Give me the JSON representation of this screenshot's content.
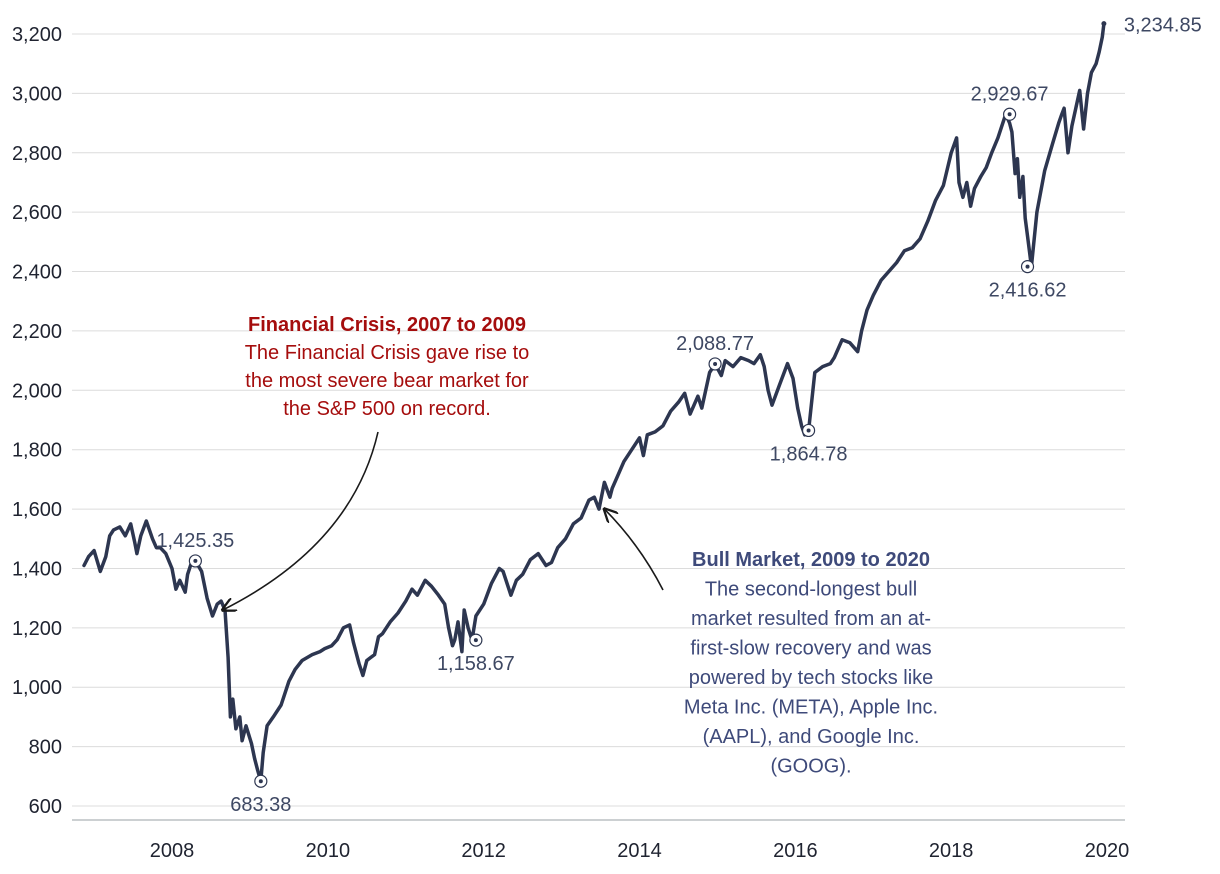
{
  "colors": {
    "line": "#2d3650",
    "grid": "#dcdcdc",
    "crisis": "#a50d0d",
    "bull": "#3e4a7a",
    "label": "#3e4863"
  },
  "chart_data": {
    "type": "line",
    "title": "",
    "xlabel": "",
    "ylabel": "",
    "xlim": [
      2006.87,
      2019.96
    ],
    "ylim": [
      600,
      3250
    ],
    "y_ticks": [
      600,
      800,
      1000,
      1200,
      1400,
      1600,
      1800,
      2000,
      2200,
      2400,
      2600,
      2800,
      3000,
      3200
    ],
    "y_tick_labels": [
      "600",
      "800",
      "1,000",
      "1,200",
      "1,400",
      "1,600",
      "1,800",
      "2,000",
      "2,200",
      "2,400",
      "2,600",
      "2,800",
      "3,000",
      "3,200"
    ],
    "x_ticks": [
      2008,
      2010,
      2012,
      2014,
      2016,
      2018,
      2020
    ],
    "x_tick_labels": [
      "2008",
      "2010",
      "2012",
      "2014",
      "2016",
      "2018",
      "2020"
    ],
    "grid": "horizontal",
    "series": [
      {
        "name": "S&P 500",
        "x": [
          2006.87,
          2006.93,
          2007.0,
          2007.08,
          2007.15,
          2007.2,
          2007.25,
          2007.33,
          2007.4,
          2007.47,
          2007.52,
          2007.55,
          2007.6,
          2007.67,
          2007.75,
          2007.8,
          2007.85,
          2007.92,
          2008.0,
          2008.05,
          2008.1,
          2008.17,
          2008.2,
          2008.25,
          2008.3,
          2008.38,
          2008.45,
          2008.52,
          2008.58,
          2008.63,
          2008.68,
          2008.72,
          2008.75,
          2008.78,
          2008.82,
          2008.87,
          2008.9,
          2008.95,
          2009.02,
          2009.06,
          2009.1,
          2009.14,
          2009.17,
          2009.22,
          2009.3,
          2009.4,
          2009.5,
          2009.58,
          2009.67,
          2009.8,
          2009.9,
          2009.96,
          2010.05,
          2010.12,
          2010.2,
          2010.28,
          2010.33,
          2010.4,
          2010.45,
          2010.5,
          2010.55,
          2010.6,
          2010.65,
          2010.7,
          2010.8,
          2010.9,
          2011.0,
          2011.08,
          2011.15,
          2011.25,
          2011.33,
          2011.42,
          2011.5,
          2011.55,
          2011.6,
          2011.63,
          2011.67,
          2011.72,
          2011.75,
          2011.8,
          2011.85,
          2011.9,
          2012.0,
          2012.1,
          2012.2,
          2012.25,
          2012.35,
          2012.42,
          2012.5,
          2012.6,
          2012.7,
          2012.8,
          2012.87,
          2012.95,
          2013.05,
          2013.15,
          2013.25,
          2013.35,
          2013.42,
          2013.48,
          2013.55,
          2013.62,
          2013.65,
          2013.7,
          2013.8,
          2013.9,
          2014.0,
          2014.05,
          2014.1,
          2014.2,
          2014.3,
          2014.4,
          2014.5,
          2014.58,
          2014.65,
          2014.75,
          2014.8,
          2014.9,
          2014.97,
          2015.05,
          2015.1,
          2015.2,
          2015.3,
          2015.4,
          2015.47,
          2015.55,
          2015.6,
          2015.65,
          2015.7,
          2015.8,
          2015.9,
          2015.97,
          2016.03,
          2016.08,
          2016.12,
          2016.17,
          2016.25,
          2016.35,
          2016.45,
          2016.5,
          2016.6,
          2016.7,
          2016.8,
          2016.85,
          2016.92,
          2017.0,
          2017.1,
          2017.2,
          2017.3,
          2017.4,
          2017.5,
          2017.6,
          2017.7,
          2017.8,
          2017.9,
          2018.0,
          2018.07,
          2018.1,
          2018.15,
          2018.2,
          2018.25,
          2018.3,
          2018.38,
          2018.45,
          2018.52,
          2018.6,
          2018.7,
          2018.75,
          2018.78,
          2018.82,
          2018.85,
          2018.88,
          2018.92,
          2018.95,
          2018.98,
          2019.03,
          2019.1,
          2019.2,
          2019.3,
          2019.38,
          2019.42,
          2019.45,
          2019.5,
          2019.55,
          2019.6,
          2019.65,
          2019.7,
          2019.75,
          2019.8,
          2019.86,
          2019.9,
          2019.94,
          2019.96
        ],
        "values": [
          1410,
          1440,
          1460,
          1390,
          1440,
          1510,
          1530,
          1540,
          1510,
          1550,
          1490,
          1450,
          1510,
          1560,
          1500,
          1470,
          1470,
          1450,
          1400,
          1330,
          1360,
          1320,
          1380,
          1420,
          1425.35,
          1390,
          1300,
          1240,
          1280,
          1290,
          1260,
          1100,
          900,
          960,
          860,
          900,
          820,
          870,
          810,
          760,
          720,
          683.38,
          780,
          870,
          900,
          940,
          1020,
          1060,
          1090,
          1110,
          1120,
          1130,
          1140,
          1160,
          1200,
          1210,
          1150,
          1080,
          1040,
          1090,
          1100,
          1110,
          1170,
          1180,
          1220,
          1250,
          1290,
          1330,
          1310,
          1360,
          1340,
          1310,
          1280,
          1200,
          1140,
          1160,
          1220,
          1120,
          1260,
          1200,
          1158.67,
          1240,
          1280,
          1350,
          1400,
          1390,
          1310,
          1360,
          1380,
          1430,
          1450,
          1410,
          1420,
          1470,
          1500,
          1550,
          1570,
          1630,
          1640,
          1600,
          1690,
          1640,
          1670,
          1700,
          1760,
          1800,
          1840,
          1780,
          1850,
          1860,
          1880,
          1930,
          1960,
          1990,
          1920,
          1980,
          1940,
          2060,
          2088.77,
          2050,
          2100,
          2080,
          2110,
          2100,
          2090,
          2120,
          2080,
          2000,
          1950,
          2020,
          2090,
          2040,
          1940,
          1880,
          1850,
          1864.78,
          2060,
          2080,
          2090,
          2110,
          2170,
          2160,
          2130,
          2200,
          2270,
          2320,
          2370,
          2400,
          2430,
          2470,
          2480,
          2510,
          2570,
          2640,
          2690,
          2800,
          2850,
          2700,
          2650,
          2700,
          2620,
          2680,
          2720,
          2750,
          2800,
          2850,
          2929.67,
          2900,
          2870,
          2730,
          2780,
          2650,
          2720,
          2580,
          2520,
          2416.62,
          2600,
          2740,
          2830,
          2900,
          2930,
          2950,
          2800,
          2890,
          2950,
          3010,
          2880,
          3000,
          3070,
          3100,
          3140,
          3190,
          3234.85
        ]
      }
    ],
    "points": [
      {
        "x": 2008.3,
        "value": 1425.35,
        "label": "1,425.35",
        "pos": "above"
      },
      {
        "x": 2009.14,
        "value": 683.38,
        "label": "683.38",
        "pos": "below"
      },
      {
        "x": 2011.9,
        "value": 1158.67,
        "label": "1,158.67",
        "pos": "below"
      },
      {
        "x": 2014.97,
        "value": 2088.77,
        "label": "2,088.77",
        "pos": "above"
      },
      {
        "x": 2016.17,
        "value": 1864.78,
        "label": "1,864.78",
        "pos": "below"
      },
      {
        "x": 2018.75,
        "value": 2929.67,
        "label": "2,929.67",
        "pos": "above"
      },
      {
        "x": 2018.98,
        "value": 2416.62,
        "label": "2,416.62",
        "pos": "below"
      },
      {
        "x": 2019.96,
        "value": 3234.85,
        "label": "3,234.85",
        "pos": "right"
      }
    ],
    "annotations": [
      {
        "id": "crisis",
        "title": "Financial Crisis, 2007 to 2009",
        "lines": [
          "The Financial Crisis gave rise to",
          "the most severe bear market for",
          "the S&P 500 on record."
        ],
        "arrow_target": {
          "x": 2008.65,
          "value": 1260
        }
      },
      {
        "id": "bull",
        "title": "Bull Market, 2009 to 2020",
        "lines": [
          "The second-longest bull",
          "market resulted from an at-",
          "first-slow recovery and was",
          "powered by tech stocks like",
          "Meta Inc. (META), Apple Inc.",
          "(AAPL), and Google Inc.",
          "(GOOG)."
        ],
        "arrow_target": {
          "x": 2013.55,
          "value": 1600
        }
      }
    ]
  }
}
